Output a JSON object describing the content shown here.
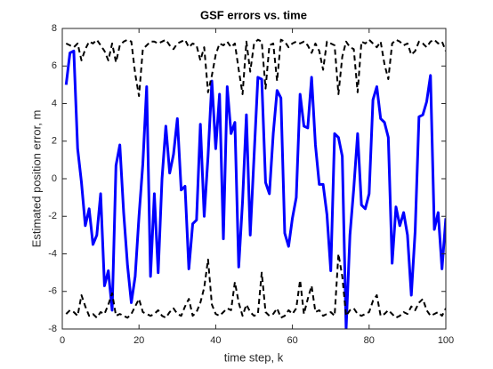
{
  "chart_data": {
    "type": "line",
    "title": "GSF errors vs. time",
    "x_label": "time step, k",
    "y_label": "Estimated position error, m",
    "xlim": [
      0,
      100
    ],
    "xticks": [
      0,
      20,
      40,
      60,
      80,
      100
    ],
    "ylim": [
      -8,
      8
    ],
    "yticks": [
      -8,
      -6,
      -4,
      -2,
      0,
      2,
      4,
      6,
      8
    ],
    "grid": false,
    "box": true,
    "x": [
      1,
      2,
      3,
      4,
      5,
      6,
      7,
      8,
      9,
      10,
      11,
      12,
      13,
      14,
      15,
      16,
      17,
      18,
      19,
      20,
      21,
      22,
      23,
      24,
      25,
      26,
      27,
      28,
      29,
      30,
      31,
      32,
      33,
      34,
      35,
      36,
      37,
      38,
      39,
      40,
      41,
      42,
      43,
      44,
      45,
      46,
      47,
      48,
      49,
      50,
      51,
      52,
      53,
      54,
      55,
      56,
      57,
      58,
      59,
      60,
      61,
      62,
      63,
      64,
      65,
      66,
      67,
      68,
      69,
      70,
      71,
      72,
      73,
      74,
      75,
      76,
      77,
      78,
      79,
      80,
      81,
      82,
      83,
      84,
      85,
      86,
      87,
      88,
      89,
      90,
      91,
      92,
      93,
      94,
      95,
      96,
      97,
      98,
      99,
      100
    ],
    "series": [
      {
        "color": "#0000ff",
        "line_style": "solid",
        "line_width": 3,
        "values": [
          5.0,
          6.7,
          6.8,
          1.6,
          -0.2,
          -2.5,
          -1.6,
          -3.5,
          -3.0,
          -0.8,
          -5.7,
          -4.9,
          -7.0,
          0.7,
          1.8,
          -1.8,
          -4.6,
          -6.6,
          -5.2,
          -2.0,
          0.8,
          4.9,
          -5.2,
          -0.8,
          -5.0,
          0.0,
          2.8,
          0.3,
          1.3,
          3.2,
          -0.6,
          -0.4,
          -4.8,
          -2.4,
          -2.2,
          2.9,
          -2.0,
          1.2,
          5.2,
          1.6,
          4.5,
          -3.2,
          4.9,
          2.4,
          3.0,
          -4.7,
          -1.2,
          3.4,
          -3.0,
          1.2,
          5.4,
          5.3,
          -0.2,
          -0.8,
          2.4,
          4.7,
          4.3,
          -2.9,
          -3.6,
          -2.1,
          -1.0,
          4.5,
          2.8,
          2.7,
          5.4,
          1.8,
          -0.3,
          -0.3,
          -1.9,
          -4.9,
          2.4,
          2.2,
          1.2,
          -8.0,
          -3.0,
          -0.5,
          2.4,
          -1.4,
          -1.6,
          -0.8,
          4.2,
          4.9,
          3.2,
          3.0,
          2.2,
          -4.5,
          -1.5,
          -2.5,
          -1.8,
          -3.0,
          -6.2,
          -2.8,
          3.3,
          3.4,
          4.1,
          5.5,
          -2.7,
          -1.8,
          -4.8,
          -2.1
        ]
      },
      {
        "color": "#000000",
        "line_style": "dashed",
        "line_width": 2,
        "values": [
          7.2,
          7.1,
          7.0,
          7.2,
          6.3,
          6.9,
          7.3,
          7.2,
          7.4,
          7.1,
          6.8,
          6.3,
          7.2,
          6.2,
          7.1,
          7.3,
          7.4,
          7.3,
          5.6,
          4.4,
          6.9,
          7.1,
          7.3,
          7.3,
          7.2,
          7.3,
          7.4,
          7.1,
          6.9,
          7.2,
          7.3,
          7.4,
          7.0,
          7.2,
          7.1,
          6.3,
          7.0,
          4.6,
          5.5,
          6.6,
          7.2,
          7.1,
          7.3,
          7.0,
          7.2,
          5.8,
          4.5,
          7.3,
          5.7,
          7.2,
          7.4,
          7.3,
          4.8,
          7.1,
          7.2,
          5.2,
          7.4,
          7.3,
          7.0,
          7.2,
          7.3,
          7.2,
          7.3,
          7.1,
          6.7,
          7.2,
          6.8,
          5.8,
          7.3,
          7.2,
          7.1,
          4.5,
          6.5,
          7.3,
          7.0,
          6.9,
          4.6,
          7.3,
          7.2,
          7.4,
          7.2,
          7.0,
          7.3,
          6.1,
          5.3,
          7.2,
          7.4,
          7.3,
          7.1,
          7.2,
          6.6,
          6.8,
          7.3,
          7.2,
          7.0,
          7.3,
          7.4,
          7.2,
          7.3,
          6.8
        ]
      },
      {
        "color": "#000000",
        "line_style": "dashed",
        "line_width": 2,
        "values": [
          -7.2,
          -7.0,
          -7.1,
          -7.3,
          -6.2,
          -6.8,
          -7.3,
          -7.2,
          -7.4,
          -7.1,
          -7.2,
          -6.7,
          -6.1,
          -7.3,
          -7.2,
          -7.3,
          -7.4,
          -7.2,
          -6.8,
          -6.4,
          -7.1,
          -7.2,
          -7.3,
          -7.2,
          -7.0,
          -7.3,
          -7.4,
          -7.1,
          -6.9,
          -7.2,
          -7.3,
          -6.8,
          -6.4,
          -7.3,
          -7.1,
          -6.6,
          -5.8,
          -4.3,
          -6.7,
          -7.2,
          -7.3,
          -7.1,
          -6.9,
          -7.0,
          -5.5,
          -6.6,
          -7.3,
          -6.7,
          -7.1,
          -7.3,
          -7.2,
          -5.0,
          -7.1,
          -7.3,
          -7.2,
          -6.9,
          -7.4,
          -7.3,
          -7.0,
          -7.2,
          -6.9,
          -5.4,
          -7.2,
          -6.4,
          -5.7,
          -7.1,
          -7.0,
          -7.3,
          -7.2,
          -7.1,
          -7.3,
          -4.0,
          -5.2,
          -7.3,
          -7.0,
          -6.9,
          -7.2,
          -7.3,
          -7.2,
          -7.1,
          -6.5,
          -6.2,
          -7.3,
          -7.2,
          -7.0,
          -7.2,
          -7.4,
          -7.3,
          -7.1,
          -7.2,
          -6.8,
          -7.0,
          -6.6,
          -6.4,
          -7.0,
          -7.3,
          -7.2,
          -7.1,
          -7.3,
          -6.9
        ]
      }
    ]
  }
}
